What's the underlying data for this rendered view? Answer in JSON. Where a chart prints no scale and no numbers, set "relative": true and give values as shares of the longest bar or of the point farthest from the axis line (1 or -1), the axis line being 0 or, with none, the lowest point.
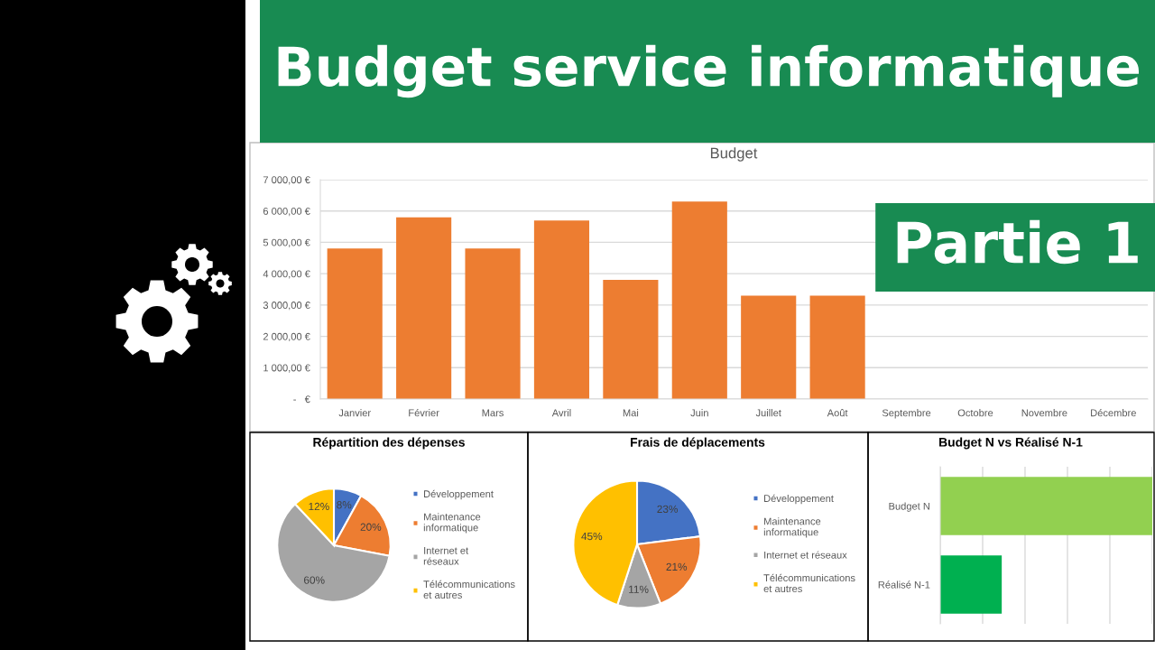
{
  "chart_data": [
    {
      "type": "other",
      "title": "Budget service informatique",
      "subtitle": "Partie 1"
    },
    {
      "type": "bar",
      "title": "Budget",
      "categories": [
        "Janvier",
        "Février",
        "Mars",
        "Avril",
        "Mai",
        "Juin",
        "Juillet",
        "Août",
        "Septembre",
        "Octobre",
        "Novembre",
        "Décembre"
      ],
      "values": [
        4800,
        5800,
        4800,
        5700,
        3800,
        6300,
        3300,
        3300,
        null,
        null,
        null,
        null
      ],
      "color": "#ed7d31",
      "ylim": [
        0,
        7000
      ],
      "yticks": [
        {
          "value": 0,
          "label": "-   €"
        },
        {
          "value": 1000,
          "label": "1 000,00 €"
        },
        {
          "value": 2000,
          "label": "2 000,00 €"
        },
        {
          "value": 3000,
          "label": "3 000,00 €"
        },
        {
          "value": 4000,
          "label": "4 000,00 €"
        },
        {
          "value": 5000,
          "label": "5 000,00 €"
        },
        {
          "value": 6000,
          "label": "6 000,00 €"
        },
        {
          "value": 7000,
          "label": "7 000,00 €"
        }
      ],
      "grid": "y"
    },
    {
      "type": "pie",
      "title": "Répartition des dépenses",
      "categories": [
        "Développement",
        "Maintenance informatique",
        "Internet et réseaux",
        "Télécommunications et autres"
      ],
      "values": [
        8,
        20,
        60,
        12
      ],
      "colors": [
        "#4472c4",
        "#ed7d31",
        "#a5a5a5",
        "#ffc000"
      ],
      "value_labels": [
        "8%",
        "20%",
        "60%",
        "12%"
      ],
      "legend": "right"
    },
    {
      "type": "pie",
      "title": "Frais de déplacements",
      "categories": [
        "Développement",
        "Maintenance informatique",
        "Internet et réseaux",
        "Télécommunications et autres"
      ],
      "values": [
        23,
        21,
        11,
        45
      ],
      "colors": [
        "#4472c4",
        "#ed7d31",
        "#a5a5a5",
        "#ffc000"
      ],
      "value_labels": [
        "23%",
        "21%",
        "11%",
        "45%"
      ],
      "legend": "right"
    },
    {
      "type": "bar",
      "title": "Budget N vs Réalisé N-1",
      "orientation": "horizontal",
      "categories": [
        "Budget N",
        "Réalisé N-1"
      ],
      "values": [
        1,
        0.29
      ],
      "colors": [
        "#92d050",
        "#00b050"
      ],
      "relative": true,
      "grid": "x"
    }
  ]
}
